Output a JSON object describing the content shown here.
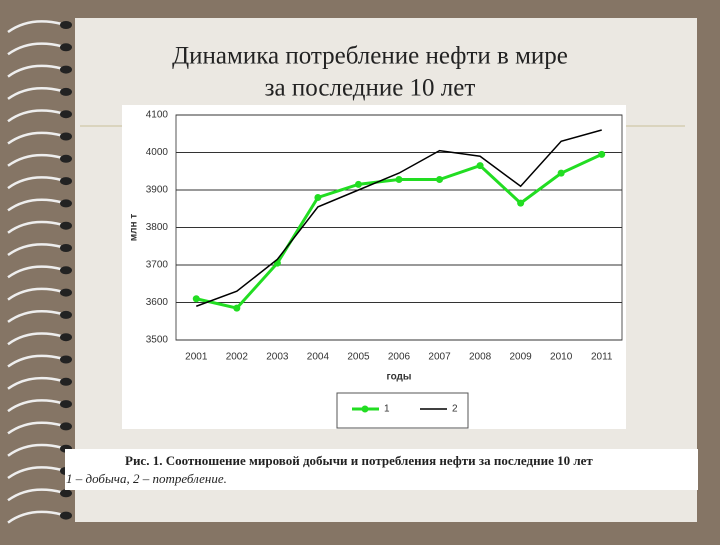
{
  "slide": {
    "title_lines": [
      "Динамика потребление нефти в мире",
      "за последние 10 лет"
    ],
    "caption": "Рис. 1. Соотношение мировой добычи и потребления нефти за последние 10 лет",
    "caption_note": "1 – добыча, 2 – потребление."
  },
  "chart_data": {
    "type": "line",
    "x_label": "годы",
    "y_label": "млн т",
    "categories": [
      "2001",
      "2002",
      "2003",
      "2004",
      "2005",
      "2006",
      "2007",
      "2008",
      "2009",
      "2010",
      "2011"
    ],
    "series": [
      {
        "name": "1",
        "color": "#22dd22",
        "marker": true,
        "values": [
          3610,
          3585,
          3705,
          3880,
          3915,
          3928,
          3928,
          3965,
          3865,
          3945,
          3995
        ]
      },
      {
        "name": "2",
        "color": "#000000",
        "marker": false,
        "values": [
          3590,
          3630,
          3715,
          3855,
          3900,
          3945,
          4005,
          3990,
          3910,
          4030,
          4060
        ]
      }
    ],
    "ylim": [
      3500,
      4100
    ],
    "yticks": [
      3500,
      3600,
      3700,
      3800,
      3900,
      4000,
      4100
    ],
    "grid": true,
    "legend": "bottom"
  }
}
